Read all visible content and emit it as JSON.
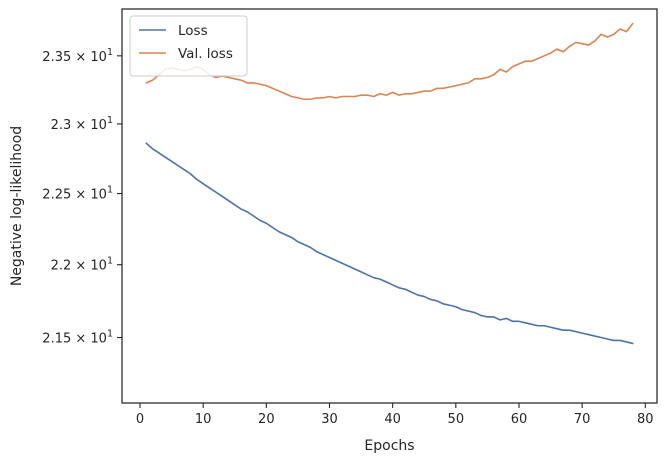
{
  "chart_data": {
    "type": "line",
    "title": "",
    "xlabel": "Epochs",
    "ylabel": "Negative log-likelihood",
    "x_ticks": [
      "0",
      "10",
      "20",
      "30",
      "40",
      "50",
      "60",
      "70",
      "80"
    ],
    "y_ticks": [
      {
        "value": 21.5,
        "mantissa": "2.15",
        "exponent": "1"
      },
      {
        "value": 22.0,
        "mantissa": "2.2",
        "exponent": "1"
      },
      {
        "value": 22.5,
        "mantissa": "2.25",
        "exponent": "1"
      },
      {
        "value": 23.0,
        "mantissa": "2.3",
        "exponent": "1"
      },
      {
        "value": 23.5,
        "mantissa": "2.35",
        "exponent": "1"
      }
    ],
    "tick_multiplier": "× 10",
    "xlim": [
      -2.85,
      81.85
    ],
    "ylim": [
      21.06,
      23.85
    ],
    "yscale": "log",
    "grid": false,
    "legend_position": "top-left",
    "series": [
      {
        "name": "Loss",
        "color": "#4c72b0",
        "x": [
          1,
          2,
          3,
          4,
          5,
          6,
          7,
          8,
          9,
          10,
          11,
          12,
          13,
          14,
          15,
          16,
          17,
          18,
          19,
          20,
          21,
          22,
          23,
          24,
          25,
          26,
          27,
          28,
          29,
          30,
          31,
          32,
          33,
          34,
          35,
          36,
          37,
          38,
          39,
          40,
          41,
          42,
          43,
          44,
          45,
          46,
          47,
          48,
          49,
          50,
          51,
          52,
          53,
          54,
          55,
          56,
          57,
          58,
          59,
          60,
          61,
          62,
          63,
          64,
          65,
          66,
          67,
          68,
          69,
          70,
          71,
          72,
          73,
          74,
          75,
          76,
          77,
          78
        ],
        "values": [
          22.86,
          22.82,
          22.79,
          22.76,
          22.73,
          22.7,
          22.67,
          22.64,
          22.6,
          22.57,
          22.54,
          22.51,
          22.48,
          22.45,
          22.42,
          22.39,
          22.37,
          22.34,
          22.31,
          22.29,
          22.26,
          22.23,
          22.21,
          22.19,
          22.16,
          22.14,
          22.12,
          22.09,
          22.07,
          22.05,
          22.03,
          22.01,
          21.99,
          21.97,
          21.95,
          21.93,
          21.91,
          21.9,
          21.88,
          21.86,
          21.84,
          21.83,
          21.81,
          21.79,
          21.78,
          21.76,
          21.75,
          21.73,
          21.72,
          21.71,
          21.69,
          21.68,
          21.67,
          21.65,
          21.64,
          21.64,
          21.62,
          21.63,
          21.61,
          21.61,
          21.6,
          21.59,
          21.58,
          21.58,
          21.57,
          21.56,
          21.55,
          21.55,
          21.54,
          21.53,
          21.52,
          21.51,
          21.5,
          21.49,
          21.48,
          21.48,
          21.47,
          21.46
        ]
      },
      {
        "name": "Val. loss",
        "color": "#dd8452",
        "x": [
          1,
          2,
          3,
          4,
          5,
          6,
          7,
          8,
          9,
          10,
          11,
          12,
          13,
          14,
          15,
          16,
          17,
          18,
          19,
          20,
          21,
          22,
          23,
          24,
          25,
          26,
          27,
          28,
          29,
          30,
          31,
          32,
          33,
          34,
          35,
          36,
          37,
          38,
          39,
          40,
          41,
          42,
          43,
          44,
          45,
          46,
          47,
          48,
          49,
          50,
          51,
          52,
          53,
          54,
          55,
          56,
          57,
          58,
          59,
          60,
          61,
          62,
          63,
          64,
          65,
          66,
          67,
          68,
          69,
          70,
          71,
          72,
          73,
          74,
          75,
          76,
          77,
          78
        ],
        "values": [
          23.3,
          23.32,
          23.36,
          23.4,
          23.41,
          23.4,
          23.39,
          23.4,
          23.42,
          23.4,
          23.36,
          23.34,
          23.35,
          23.34,
          23.33,
          23.32,
          23.3,
          23.3,
          23.29,
          23.28,
          23.26,
          23.24,
          23.22,
          23.2,
          23.19,
          23.18,
          23.18,
          23.19,
          23.19,
          23.2,
          23.19,
          23.2,
          23.2,
          23.2,
          23.21,
          23.21,
          23.2,
          23.22,
          23.21,
          23.23,
          23.21,
          23.22,
          23.22,
          23.23,
          23.24,
          23.24,
          23.26,
          23.26,
          23.27,
          23.28,
          23.29,
          23.3,
          23.33,
          23.33,
          23.34,
          23.36,
          23.4,
          23.38,
          23.42,
          23.44,
          23.46,
          23.46,
          23.48,
          23.5,
          23.52,
          23.55,
          23.53,
          23.57,
          23.6,
          23.59,
          23.58,
          23.61,
          23.66,
          23.64,
          23.66,
          23.7,
          23.68,
          23.74
        ]
      }
    ]
  }
}
